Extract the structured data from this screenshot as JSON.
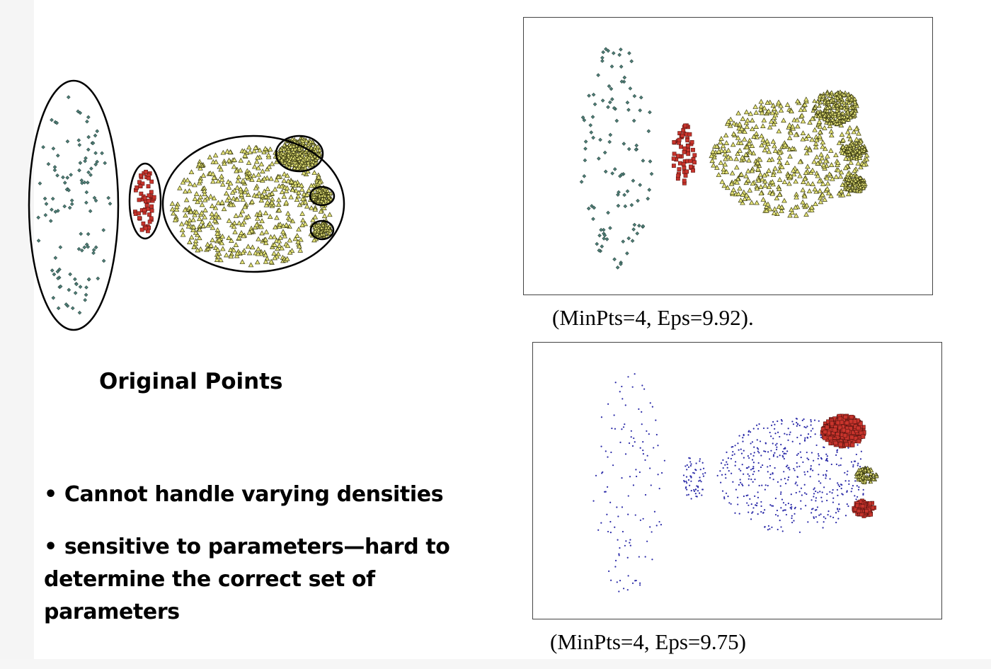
{
  "panels": {
    "original": {
      "caption": "Original Points"
    },
    "top_right": {
      "caption": "(MinPts=4, Eps=9.92)."
    },
    "bottom_right": {
      "caption": "(MinPts=4, Eps=9.75)"
    }
  },
  "bullets": [
    "Cannot handle varying densities",
    "sensitive to parameters—hard to determine the correct set of parameters"
  ],
  "colors": {
    "teal": "#4f7f77",
    "red": "#c8342c",
    "yellow": "#e7e67a",
    "blue": "#2a2aa8",
    "outline": "#000000"
  },
  "icons": {
    "teal_marker": "diamond",
    "red_marker": "square",
    "yellow_marker": "triangle",
    "blue_marker": "dot"
  }
}
